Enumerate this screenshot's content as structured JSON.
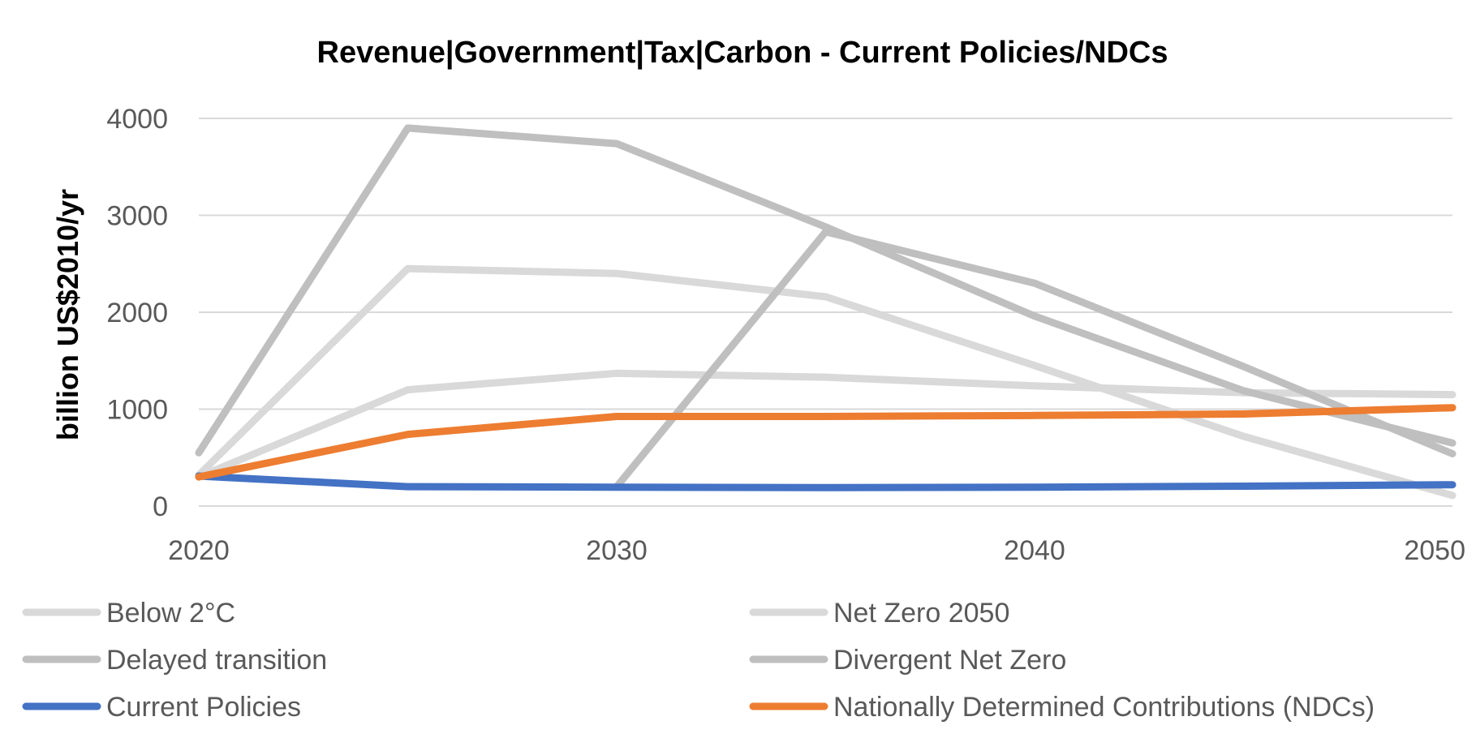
{
  "chart_data": {
    "type": "line",
    "title": "Revenue|Government|Tax|Carbon - Current Policies/NDCs",
    "xlabel": "",
    "ylabel": "billion US$2010/yr",
    "x": [
      2020,
      2025,
      2030,
      2035,
      2040,
      2045,
      2050
    ],
    "xlim": [
      2020,
      2050
    ],
    "xticks": [
      2020,
      2030,
      2040,
      2050
    ],
    "ylim": [
      0,
      4000
    ],
    "yticks": [
      0,
      1000,
      2000,
      3000,
      4000
    ],
    "grid": true,
    "legend": "bottom",
    "series": [
      {
        "name": "Below 2°C",
        "color": "#d9d9d9",
        "values": [
          300,
          1200,
          1370,
          1330,
          1240,
          1170,
          1150
        ]
      },
      {
        "name": "Net Zero 2050",
        "color": "#d9d9d9",
        "values": [
          320,
          2450,
          2400,
          2160,
          1450,
          720,
          110
        ]
      },
      {
        "name": "Delayed transition",
        "color": "#bfbfbf",
        "values": [
          null,
          null,
          200,
          2830,
          2300,
          1440,
          540
        ]
      },
      {
        "name": "Divergent Net Zero",
        "color": "#bfbfbf",
        "values": [
          550,
          3900,
          3740,
          2880,
          1960,
          1190,
          650
        ]
      },
      {
        "name": "Current Policies",
        "color": "#4472c4",
        "values": [
          310,
          200,
          195,
          190,
          195,
          205,
          220
        ]
      },
      {
        "name": "Nationally Determined Contributions (NDCs)",
        "color": "#ed7d31",
        "values": [
          300,
          740,
          925,
          925,
          935,
          950,
          1015
        ]
      }
    ]
  }
}
